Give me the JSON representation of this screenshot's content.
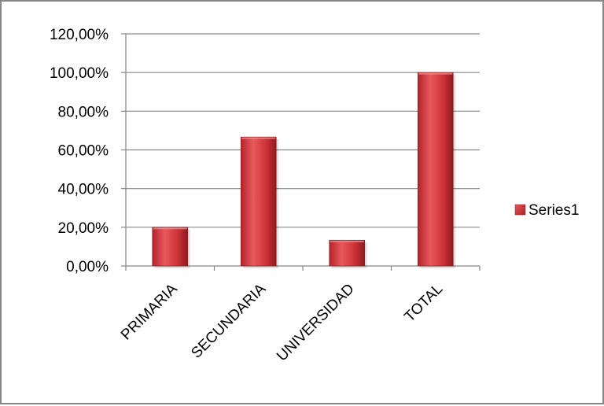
{
  "chart_data": {
    "type": "bar",
    "categories": [
      "PRIMARIA",
      "SECUNDARIA",
      "UNIVERSIDAD",
      "TOTAL"
    ],
    "series": [
      {
        "name": "Series1",
        "values": [
          20.0,
          66.67,
          13.33,
          100.0
        ]
      }
    ],
    "yticks": [
      "0,00%",
      "20,00%",
      "40,00%",
      "60,00%",
      "80,00%",
      "100,00%",
      "120,00%"
    ],
    "ylim": [
      0,
      120
    ],
    "grid": true,
    "legend_position": "right",
    "colors": {
      "bar": "#c0272d",
      "bar_light": "#e8595e",
      "bar_dark": "#8f1a1f",
      "gridline": "#868686",
      "frame": "#868686"
    }
  }
}
